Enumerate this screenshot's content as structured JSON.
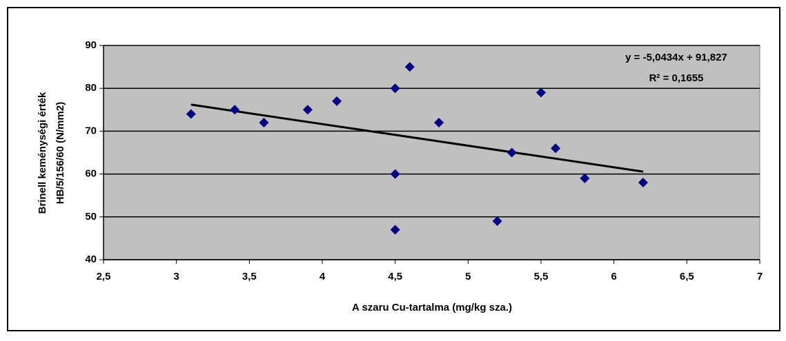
{
  "chart_data": {
    "type": "scatter",
    "xlabel": "A szaru Cu-tartalma (mg/kg sza.)",
    "ylabel": [
      "Brinell keménységi érték",
      "HB/5/156/60 (N/mm2)"
    ],
    "x": [
      3.1,
      3.4,
      3.6,
      3.9,
      4.1,
      4.5,
      4.5,
      4.5,
      4.6,
      4.8,
      5.2,
      5.3,
      5.5,
      5.6,
      5.8,
      6.2
    ],
    "values": [
      74,
      75,
      72,
      75,
      77,
      80,
      60,
      47,
      85,
      72,
      49,
      65,
      79,
      66,
      59,
      58
    ],
    "color": "#000080",
    "xlim": [
      2.5,
      7
    ],
    "xticks": [
      {
        "value": 2.5,
        "label": "2,5"
      },
      3,
      {
        "value": 3.5,
        "label": "3,5"
      },
      4,
      {
        "value": 4.5,
        "label": "4,5"
      },
      5,
      {
        "value": 5.5,
        "label": "5,5"
      },
      6,
      {
        "value": 6.5,
        "label": "6,5"
      },
      7
    ],
    "ylim": [
      40,
      90
    ],
    "yticks": [
      40,
      50,
      60,
      70,
      80,
      90
    ],
    "grid": true,
    "trendline": {
      "slope": -5.0434,
      "intercept": 91.827,
      "equation": "y = -5,0434x + 91,827",
      "r2_label": "R² = 0,1655"
    }
  }
}
